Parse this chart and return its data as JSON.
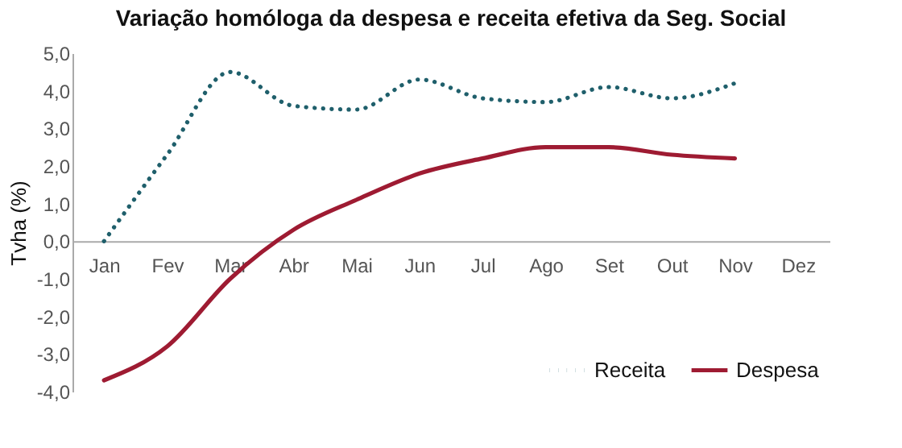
{
  "chart_data": {
    "type": "line",
    "title": "Variação homóloga da despesa e receita efetiva da Seg. Social",
    "ylabel": "Tvha (%)",
    "categories": [
      "Jan",
      "Fev",
      "Mar",
      "Abr",
      "Mai",
      "Jun",
      "Jul",
      "Ago",
      "Set",
      "Out",
      "Nov",
      "Dez"
    ],
    "series": [
      {
        "name": "Receita",
        "color": "#1f5f6b",
        "line_style": "dotted",
        "values": [
          0,
          2.3,
          4.5,
          3.6,
          3.5,
          4.3,
          3.8,
          3.7,
          4.1,
          3.8,
          4.2,
          null
        ]
      },
      {
        "name": "Despesa",
        "color": "#9e1b32",
        "line_style": "solid",
        "values": [
          -3.7,
          -2.8,
          -1.0,
          0.3,
          1.1,
          1.8,
          2.2,
          2.5,
          2.5,
          2.3,
          2.2,
          null
        ]
      }
    ],
    "ylim": [
      -4,
      5
    ],
    "yticks": [
      {
        "value": -4,
        "label": "-4,0"
      },
      {
        "value": -3,
        "label": "-3,0"
      },
      {
        "value": -2,
        "label": "-2,0"
      },
      {
        "value": -1,
        "label": "-1,0"
      },
      {
        "value": 0,
        "label": "0,0"
      },
      {
        "value": 1,
        "label": "1,0"
      },
      {
        "value": 2,
        "label": "2,0"
      },
      {
        "value": 3,
        "label": "3,0"
      },
      {
        "value": 4,
        "label": "4,0"
      },
      {
        "value": 5,
        "label": "5,0"
      }
    ],
    "legend": "bottom right",
    "grid": false
  }
}
